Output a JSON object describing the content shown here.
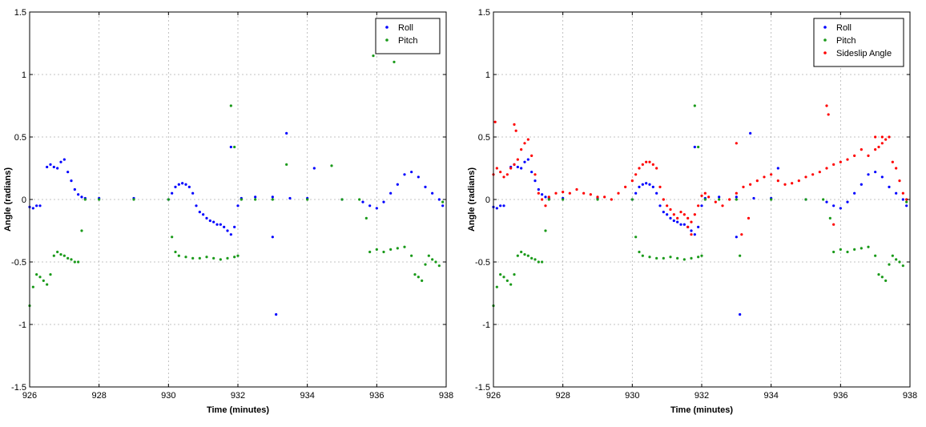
{
  "chart_data": [
    {
      "type": "scatter",
      "title": "",
      "xlabel": "Time (minutes)",
      "ylabel": "Angle (radians)",
      "xlim": [
        926,
        938
      ],
      "ylim": [
        -1.5,
        1.5
      ],
      "xticks": [
        "926",
        "928",
        "930",
        "932",
        "934",
        "936",
        "938"
      ],
      "yticks": [
        "-1.5",
        "-1",
        "-0.5",
        "0",
        "0.5",
        "1",
        "1.5"
      ],
      "grid": true,
      "legend_position": "top-right",
      "series": [
        {
          "name": "Roll",
          "color": "#0000ff",
          "x": [
            926.0,
            926.1,
            926.2,
            926.3,
            926.5,
            926.6,
            926.7,
            926.8,
            926.9,
            927.0,
            927.1,
            927.2,
            927.3,
            927.4,
            927.5,
            927.6,
            928.0,
            929.0,
            930.0,
            930.1,
            930.2,
            930.3,
            930.4,
            930.5,
            930.6,
            930.7,
            930.8,
            930.9,
            931.0,
            931.1,
            931.2,
            931.3,
            931.4,
            931.5,
            931.6,
            931.7,
            931.8,
            931.9,
            932.0,
            932.1,
            932.5,
            933.0,
            933.5,
            934.0,
            935.0,
            935.6,
            935.8,
            936.0,
            936.2,
            936.4,
            936.6,
            936.8,
            937.0,
            937.2,
            937.4,
            937.6,
            937.8,
            937.9,
            931.8,
            933.1,
            933.4,
            933.0,
            934.2
          ],
          "y": [
            -0.06,
            -0.07,
            -0.05,
            -0.05,
            0.26,
            0.28,
            0.26,
            0.25,
            0.3,
            0.32,
            0.22,
            0.15,
            0.08,
            0.04,
            0.02,
            0.01,
            0.01,
            0.01,
            0.0,
            0.05,
            0.1,
            0.12,
            0.13,
            0.12,
            0.1,
            0.05,
            -0.05,
            -0.1,
            -0.12,
            -0.15,
            -0.17,
            -0.18,
            -0.2,
            -0.2,
            -0.22,
            -0.25,
            -0.28,
            -0.22,
            -0.05,
            0.01,
            0.02,
            0.02,
            0.01,
            0.01,
            0.0,
            -0.02,
            -0.05,
            -0.07,
            -0.02,
            0.05,
            0.12,
            0.2,
            0.22,
            0.18,
            0.1,
            0.05,
            0.0,
            -0.05,
            0.42,
            -0.92,
            0.53,
            -0.3,
            0.25
          ]
        },
        {
          "name": "Pitch",
          "color": "#1a9a1a",
          "x": [
            926.0,
            926.1,
            926.2,
            926.3,
            926.4,
            926.5,
            926.6,
            926.7,
            926.8,
            926.9,
            927.0,
            927.1,
            927.2,
            927.3,
            927.4,
            927.5,
            927.6,
            928.0,
            929.0,
            930.0,
            930.1,
            930.2,
            930.3,
            930.5,
            930.7,
            930.9,
            931.1,
            931.3,
            931.5,
            931.7,
            931.9,
            932.0,
            932.1,
            932.5,
            933.0,
            934.0,
            935.0,
            935.5,
            935.7,
            935.8,
            936.0,
            936.2,
            936.4,
            936.6,
            936.8,
            937.0,
            937.1,
            937.2,
            937.3,
            937.4,
            937.5,
            937.6,
            937.7,
            937.8,
            937.9,
            931.8,
            931.9,
            935.9,
            936.5,
            933.4,
            934.7
          ],
          "y": [
            -0.85,
            -0.7,
            -0.6,
            -0.62,
            -0.65,
            -0.68,
            -0.6,
            -0.45,
            -0.42,
            -0.44,
            -0.45,
            -0.47,
            -0.48,
            -0.5,
            -0.5,
            -0.25,
            0.0,
            0.0,
            0.0,
            0.0,
            -0.3,
            -0.42,
            -0.45,
            -0.46,
            -0.47,
            -0.47,
            -0.46,
            -0.47,
            -0.48,
            -0.47,
            -0.46,
            -0.45,
            0.0,
            0.0,
            0.0,
            0.0,
            0.0,
            0.0,
            -0.15,
            -0.42,
            -0.4,
            -0.42,
            -0.4,
            -0.39,
            -0.38,
            -0.45,
            -0.6,
            -0.62,
            -0.65,
            -0.52,
            -0.45,
            -0.48,
            -0.5,
            -0.53,
            -0.02,
            0.75,
            0.42,
            1.15,
            1.1,
            0.28,
            0.27
          ]
        }
      ]
    },
    {
      "type": "scatter",
      "title": "",
      "xlabel": "Time (minutes)",
      "ylabel": "Angle (radians)",
      "xlim": [
        926,
        938
      ],
      "ylim": [
        -1.5,
        1.5
      ],
      "xticks": [
        "926",
        "928",
        "930",
        "932",
        "934",
        "936",
        "938"
      ],
      "yticks": [
        "-1.5",
        "-1",
        "-0.5",
        "0",
        "0.5",
        "1",
        "1.5"
      ],
      "grid": true,
      "legend_position": "top-right",
      "series": [
        {
          "name": "Roll",
          "color": "#0000ff",
          "x": [
            926.0,
            926.1,
            926.2,
            926.3,
            926.5,
            926.6,
            926.7,
            926.8,
            926.9,
            927.0,
            927.1,
            927.2,
            927.3,
            927.4,
            927.5,
            927.6,
            928.0,
            929.0,
            930.0,
            930.1,
            930.2,
            930.3,
            930.4,
            930.5,
            930.6,
            930.7,
            930.8,
            930.9,
            931.0,
            931.1,
            931.2,
            931.3,
            931.4,
            931.5,
            931.6,
            931.7,
            931.8,
            931.9,
            932.0,
            932.1,
            932.5,
            933.0,
            933.5,
            934.0,
            935.0,
            935.6,
            935.8,
            936.0,
            936.2,
            936.4,
            936.6,
            936.8,
            937.0,
            937.2,
            937.4,
            937.6,
            937.8,
            937.9,
            931.8,
            933.1,
            933.4,
            933.0,
            934.2
          ],
          "y": [
            -0.06,
            -0.07,
            -0.05,
            -0.05,
            0.26,
            0.28,
            0.26,
            0.25,
            0.3,
            0.32,
            0.22,
            0.15,
            0.08,
            0.04,
            0.02,
            0.01,
            0.01,
            0.01,
            0.0,
            0.05,
            0.1,
            0.12,
            0.13,
            0.12,
            0.1,
            0.05,
            -0.05,
            -0.1,
            -0.12,
            -0.15,
            -0.17,
            -0.18,
            -0.2,
            -0.2,
            -0.22,
            -0.25,
            -0.28,
            -0.22,
            -0.05,
            0.01,
            0.02,
            0.02,
            0.01,
            0.01,
            0.0,
            -0.02,
            -0.05,
            -0.07,
            -0.02,
            0.05,
            0.12,
            0.2,
            0.22,
            0.18,
            0.1,
            0.05,
            0.0,
            -0.05,
            0.42,
            -0.92,
            0.53,
            -0.3,
            0.25
          ]
        },
        {
          "name": "Pitch",
          "color": "#1a9a1a",
          "x": [
            926.0,
            926.1,
            926.2,
            926.3,
            926.4,
            926.5,
            926.6,
            926.7,
            926.8,
            926.9,
            927.0,
            927.1,
            927.2,
            927.3,
            927.4,
            927.5,
            927.6,
            928.0,
            929.0,
            930.0,
            930.1,
            930.2,
            930.3,
            930.5,
            930.7,
            930.9,
            931.1,
            931.3,
            931.5,
            931.7,
            931.9,
            932.0,
            932.1,
            932.5,
            933.0,
            934.0,
            935.0,
            935.5,
            935.7,
            935.8,
            936.0,
            936.2,
            936.4,
            936.6,
            936.8,
            937.0,
            937.1,
            937.2,
            937.3,
            937.4,
            937.5,
            937.6,
            937.7,
            937.8,
            937.9,
            931.8,
            931.9,
            933.1
          ],
          "y": [
            -0.85,
            -0.7,
            -0.6,
            -0.62,
            -0.65,
            -0.68,
            -0.6,
            -0.45,
            -0.42,
            -0.44,
            -0.45,
            -0.47,
            -0.48,
            -0.5,
            -0.5,
            -0.25,
            0.0,
            0.0,
            0.0,
            0.0,
            -0.3,
            -0.42,
            -0.45,
            -0.46,
            -0.47,
            -0.47,
            -0.46,
            -0.47,
            -0.48,
            -0.47,
            -0.46,
            -0.45,
            0.0,
            0.0,
            0.0,
            0.0,
            0.0,
            0.0,
            -0.15,
            -0.42,
            -0.4,
            -0.42,
            -0.4,
            -0.39,
            -0.38,
            -0.45,
            -0.6,
            -0.62,
            -0.65,
            -0.52,
            -0.45,
            -0.48,
            -0.5,
            -0.53,
            -0.02,
            0.75,
            0.42,
            -0.45
          ]
        },
        {
          "name": "Sideslip Angle",
          "color": "#ff0000",
          "x": [
            926.0,
            926.1,
            926.2,
            926.3,
            926.4,
            926.5,
            926.6,
            926.7,
            926.8,
            926.9,
            927.0,
            927.1,
            927.2,
            927.3,
            927.4,
            927.5,
            927.6,
            927.8,
            928.0,
            928.2,
            928.4,
            928.6,
            928.8,
            929.0,
            929.2,
            929.4,
            929.6,
            929.8,
            930.0,
            930.1,
            930.2,
            930.3,
            930.4,
            930.5,
            930.6,
            930.7,
            930.8,
            930.9,
            931.0,
            931.1,
            931.2,
            931.3,
            931.4,
            931.5,
            931.6,
            931.7,
            931.8,
            931.9,
            932.0,
            932.1,
            932.2,
            932.4,
            932.6,
            932.8,
            933.0,
            933.2,
            933.4,
            933.6,
            933.8,
            934.0,
            934.2,
            934.4,
            934.6,
            934.8,
            935.0,
            935.2,
            935.4,
            935.6,
            935.8,
            936.0,
            936.2,
            936.4,
            936.6,
            936.8,
            937.0,
            937.1,
            937.2,
            937.3,
            937.4,
            937.5,
            937.6,
            937.7,
            937.8,
            937.9,
            926.05,
            926.6,
            926.65,
            933.15,
            933.35,
            933.0,
            935.6,
            935.65,
            935.8,
            937.0,
            937.2,
            931.6,
            931.7
          ],
          "y": [
            0.2,
            0.25,
            0.22,
            0.18,
            0.2,
            0.25,
            0.28,
            0.32,
            0.4,
            0.45,
            0.48,
            0.35,
            0.2,
            0.05,
            0.0,
            -0.05,
            0.02,
            0.05,
            0.06,
            0.05,
            0.08,
            0.05,
            0.04,
            0.02,
            0.02,
            0.0,
            0.05,
            0.1,
            0.15,
            0.2,
            0.25,
            0.28,
            0.3,
            0.3,
            0.28,
            0.25,
            0.1,
            0.0,
            -0.05,
            -0.08,
            -0.12,
            -0.15,
            -0.1,
            -0.12,
            -0.15,
            -0.18,
            -0.12,
            -0.05,
            0.03,
            0.05,
            0.02,
            -0.02,
            -0.05,
            0.0,
            0.05,
            0.1,
            0.12,
            0.15,
            0.18,
            0.2,
            0.15,
            0.12,
            0.13,
            0.15,
            0.18,
            0.2,
            0.22,
            0.25,
            0.28,
            0.3,
            0.32,
            0.35,
            0.4,
            0.35,
            0.4,
            0.42,
            0.45,
            0.48,
            0.5,
            0.3,
            0.25,
            0.15,
            0.05,
            0.0,
            0.62,
            0.6,
            0.55,
            -0.28,
            -0.15,
            0.45,
            0.75,
            0.68,
            -0.2,
            0.5,
            0.5,
            -0.22,
            -0.28
          ]
        }
      ]
    }
  ]
}
